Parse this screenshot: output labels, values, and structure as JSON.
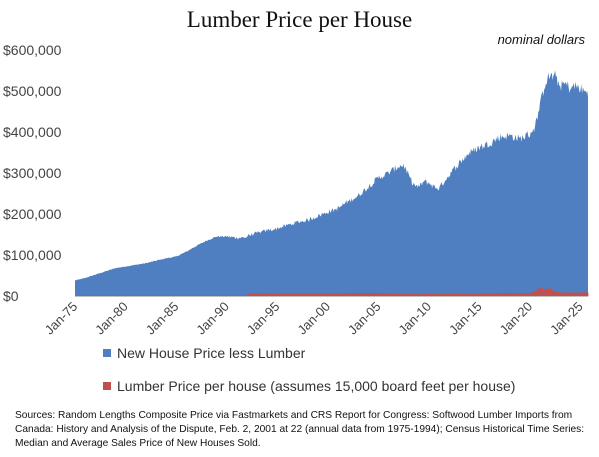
{
  "chart_data": {
    "type": "area",
    "title": "Lumber Price per House",
    "subtitle": "nominal dollars",
    "y_ticks": [
      "$0",
      "$100,000",
      "$200,000",
      "$300,000",
      "$400,000",
      "$500,000",
      "$600,000"
    ],
    "x_ticks": [
      "Jan-75",
      "Jan-80",
      "Jan-85",
      "Jan-90",
      "Jan-95",
      "Jan-00",
      "Jan-05",
      "Jan-10",
      "Jan-15",
      "Jan-20",
      "Jan-25"
    ],
    "ylim": [
      0,
      600000
    ],
    "xlim": [
      1975,
      2025.75
    ],
    "stacked": true,
    "legend_position": "bottom",
    "series": [
      {
        "name": "New House Price less Lumber",
        "color": "#4f7fc0",
        "x": [
          1975,
          1976,
          1977,
          1978,
          1979,
          1980,
          1981,
          1982,
          1983,
          1984,
          1985,
          1986,
          1987,
          1988,
          1989,
          1990,
          1991,
          1992,
          1993,
          1994,
          1995,
          1996,
          1997,
          1998,
          1999,
          2000,
          2001,
          2002,
          2003,
          2004,
          2005,
          2006,
          2007,
          2007.5,
          2008,
          2008.5,
          2009,
          2009.5,
          2010,
          2010.5,
          2011,
          2011.5,
          2012,
          2013,
          2014,
          2015,
          2016,
          2017,
          2018,
          2019,
          2020,
          2020.5,
          2021,
          2021.5,
          2022,
          2022.5,
          2023,
          2023.5,
          2024,
          2024.5,
          2025,
          2025.75
        ],
        "values": [
          38000,
          44000,
          52000,
          60000,
          68000,
          72000,
          76000,
          80000,
          86000,
          92000,
          96000,
          108000,
          122000,
          135000,
          145000,
          145000,
          142000,
          143000,
          148000,
          155000,
          160000,
          168000,
          175000,
          180000,
          190000,
          200000,
          208000,
          225000,
          238000,
          260000,
          282000,
          295000,
          312000,
          315000,
          290000,
          268000,
          262000,
          275000,
          272000,
          262000,
          258000,
          275000,
          290000,
          320000,
          345000,
          358000,
          368000,
          382000,
          385000,
          378000,
          390000,
          402000,
          445000,
          505000,
          520000,
          525000,
          505000,
          510000,
          500000,
          505000,
          498000,
          485000
        ]
      },
      {
        "name": "Lumber Price per house (assumes 15,000 board feet per house)",
        "color": "#c0504d",
        "x": [
          1975,
          1980,
          1985,
          1990,
          1992,
          1993,
          1995,
          2000,
          2004,
          2005,
          2006,
          2009,
          2010,
          2015,
          2018,
          2019,
          2020,
          2020.5,
          2021,
          2021.5,
          2022,
          2022.5,
          2023,
          2024,
          2025,
          2025.75
        ],
        "values": [
          2000,
          2700,
          2600,
          3500,
          3800,
          5400,
          4500,
          5000,
          6200,
          6000,
          4800,
          3200,
          4200,
          4300,
          6300,
          5200,
          6200,
          11000,
          18000,
          14000,
          17000,
          10000,
          8000,
          7000,
          7500,
          8000
        ]
      }
    ],
    "source": "Sources:  Random Lengths Composite Price via Fastmarkets and CRS Report for Congress: Softwood Lumber Imports from Canada: History and Analysis of the Dispute, Feb. 2, 2001 at 22 (annual data from 1975-1994); Census Historical Time Series: Median and Average Sales Price of New Houses Sold."
  }
}
